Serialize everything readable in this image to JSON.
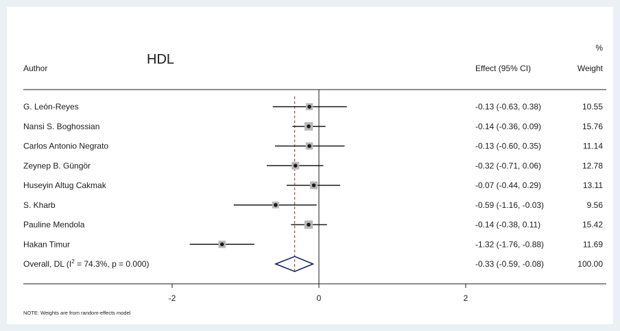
{
  "chart_data": {
    "type": "forest",
    "title": "HDL",
    "headers": {
      "author": "Author",
      "effect": "Effect (95% CI)",
      "weight_line1": "%",
      "weight_line2": "Weight"
    },
    "studies": [
      {
        "author": "G. León-Reyes",
        "effect": -0.13,
        "lower": -0.63,
        "upper": 0.38,
        "ci_text": "-0.13 (-0.63, 0.38)",
        "weight": "10.55"
      },
      {
        "author": "Nansi S. Boghossian",
        "effect": -0.14,
        "lower": -0.36,
        "upper": 0.09,
        "ci_text": "-0.14 (-0.36, 0.09)",
        "weight": "15.76"
      },
      {
        "author": "Carlos Antonio Negrato",
        "effect": -0.13,
        "lower": -0.6,
        "upper": 0.35,
        "ci_text": "-0.13 (-0.60, 0.35)",
        "weight": "11.14"
      },
      {
        "author": "Zeynep B. Güngör",
        "effect": -0.32,
        "lower": -0.71,
        "upper": 0.06,
        "ci_text": "-0.32 (-0.71, 0.06)",
        "weight": "12.78"
      },
      {
        "author": "Huseyin Altug Cakmak",
        "effect": -0.07,
        "lower": -0.44,
        "upper": 0.29,
        "ci_text": "-0.07 (-0.44, 0.29)",
        "weight": "13.11"
      },
      {
        "author": "S. Kharb",
        "effect": -0.59,
        "lower": -1.16,
        "upper": -0.03,
        "ci_text": "-0.59 (-1.16, -0.03)",
        "weight": "9.56"
      },
      {
        "author": "Pauline Mendola",
        "effect": -0.14,
        "lower": -0.38,
        "upper": 0.11,
        "ci_text": "-0.14 (-0.38, 0.11)",
        "weight": "15.42"
      },
      {
        "author": "Hakan Timur",
        "effect": -1.32,
        "lower": -1.76,
        "upper": -0.88,
        "ci_text": "-1.32 (-1.76, -0.88)",
        "weight": "11.69"
      }
    ],
    "overall": {
      "label_prefix": "Overall, DL (I",
      "label_sup": "2",
      "label_suffix": " = 74.3%, p = 0.000)",
      "effect": -0.33,
      "lower": -0.59,
      "upper": -0.08,
      "ci_text": "-0.33 (-0.59, -0.08)",
      "weight": "100.00"
    },
    "x_ticks": [
      -2,
      0,
      2
    ],
    "xlim": [
      -2.0,
      2.0
    ],
    "null_line": 0,
    "note": "NOTE: Weights are from random-effects model",
    "colors": {
      "ci_line": "#1a1a1a",
      "marker_box": "#b8b8b8",
      "marker_dot": "#1a1a1a",
      "overall_line": "#a0282a",
      "diamond": "#0b1a5e"
    }
  }
}
